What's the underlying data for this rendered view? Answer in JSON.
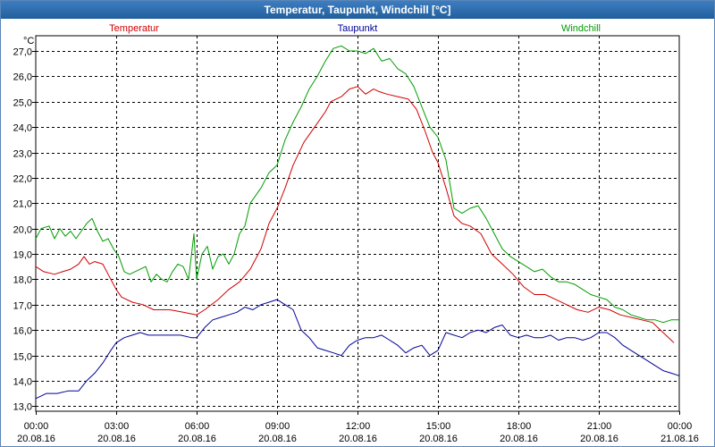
{
  "window": {
    "title": "Temperatur, Taupunkt, Windchill [°C]"
  },
  "chart_data": {
    "type": "line",
    "title": "Temperatur, Taupunkt, Windchill [°C]",
    "ylabel": "°C",
    "ylim": [
      12.8,
      27.6
    ],
    "yticks": [
      13.0,
      14.0,
      15.0,
      16.0,
      17.0,
      18.0,
      19.0,
      20.0,
      21.0,
      22.0,
      23.0,
      24.0,
      25.0,
      26.0,
      27.0
    ],
    "ytick_labels": [
      "13,0",
      "14,0",
      "15,0",
      "16,0",
      "17,0",
      "18,0",
      "19,0",
      "20,0",
      "21,0",
      "22,0",
      "23,0",
      "24,0",
      "25,0",
      "26,0",
      "27,0"
    ],
    "xlim": [
      0,
      24
    ],
    "xticks": [
      0,
      3,
      6,
      9,
      12,
      15,
      18,
      21,
      24
    ],
    "xtick_labels": [
      [
        "00:00",
        "20.08.16"
      ],
      [
        "03:00",
        "20.08.16"
      ],
      [
        "06:00",
        "20.08.16"
      ],
      [
        "09:00",
        "20.08.16"
      ],
      [
        "12:00",
        "20.08.16"
      ],
      [
        "15:00",
        "20.08.16"
      ],
      [
        "18:00",
        "20.08.16"
      ],
      [
        "21:00",
        "20.08.16"
      ],
      [
        "00:00",
        "21.08.16"
      ]
    ],
    "grid": true,
    "legend_position": "top",
    "series": [
      {
        "name": "Temperatur",
        "color": "#d00000",
        "x": [
          0,
          0.3,
          0.7,
          1.0,
          1.3,
          1.6,
          1.8,
          2.0,
          2.2,
          2.5,
          2.7,
          3.0,
          3.2,
          3.6,
          4.0,
          4.4,
          5.0,
          5.5,
          6.0,
          6.3,
          6.8,
          7.2,
          7.6,
          8.0,
          8.4,
          8.7,
          9.0,
          9.3,
          9.6,
          10.0,
          10.4,
          10.8,
          11.0,
          11.4,
          11.7,
          12.0,
          12.3,
          12.6,
          12.8,
          13.1,
          13.5,
          13.9,
          14.2,
          14.5,
          14.8,
          15.0,
          15.3,
          15.6,
          15.9,
          16.2,
          16.6,
          17.0,
          17.4,
          17.8,
          18.2,
          18.6,
          19.0,
          19.4,
          19.8,
          20.2,
          20.6,
          21.0,
          21.4,
          21.8,
          22.2,
          22.6,
          23.0,
          23.4,
          23.8
        ],
        "y": [
          18.5,
          18.3,
          18.2,
          18.3,
          18.4,
          18.6,
          18.9,
          18.6,
          18.7,
          18.6,
          18.2,
          17.6,
          17.3,
          17.1,
          17.0,
          16.8,
          16.8,
          16.7,
          16.6,
          16.8,
          17.2,
          17.6,
          17.9,
          18.4,
          19.2,
          20.2,
          20.8,
          21.6,
          22.5,
          23.4,
          24.0,
          24.6,
          25.0,
          25.2,
          25.5,
          25.6,
          25.3,
          25.5,
          25.4,
          25.3,
          25.2,
          25.1,
          24.7,
          23.9,
          23.0,
          22.6,
          21.6,
          20.5,
          20.2,
          20.1,
          19.8,
          19.0,
          18.6,
          18.2,
          17.7,
          17.4,
          17.4,
          17.2,
          17.0,
          16.8,
          16.7,
          16.9,
          16.8,
          16.6,
          16.5,
          16.4,
          16.3,
          15.9,
          15.5
        ]
      },
      {
        "name": "Taupunkt",
        "color": "#000098",
        "x": [
          0,
          0.4,
          0.8,
          1.2,
          1.6,
          1.9,
          2.2,
          2.5,
          2.8,
          3.0,
          3.3,
          3.6,
          3.9,
          4.2,
          4.6,
          5.0,
          5.4,
          5.8,
          6.0,
          6.3,
          6.6,
          6.9,
          7.2,
          7.5,
          7.8,
          8.1,
          8.4,
          8.7,
          9.0,
          9.3,
          9.6,
          9.9,
          10.2,
          10.5,
          10.8,
          11.1,
          11.4,
          11.7,
          12.0,
          12.3,
          12.6,
          12.9,
          13.2,
          13.5,
          13.8,
          14.1,
          14.4,
          14.7,
          15.0,
          15.3,
          15.6,
          15.9,
          16.2,
          16.5,
          16.8,
          17.1,
          17.4,
          17.7,
          18.0,
          18.3,
          18.6,
          18.9,
          19.2,
          19.5,
          19.8,
          20.1,
          20.4,
          20.7,
          21.0,
          21.3,
          21.6,
          21.9,
          22.2,
          22.5,
          22.8,
          23.1,
          23.4,
          23.7,
          24.0
        ],
        "y": [
          13.3,
          13.5,
          13.5,
          13.6,
          13.6,
          14.0,
          14.3,
          14.7,
          15.2,
          15.5,
          15.7,
          15.8,
          15.9,
          15.8,
          15.8,
          15.8,
          15.8,
          15.7,
          15.7,
          16.1,
          16.4,
          16.5,
          16.6,
          16.7,
          16.9,
          16.8,
          17.0,
          17.1,
          17.2,
          17.0,
          16.8,
          16.0,
          15.7,
          15.3,
          15.2,
          15.1,
          15.0,
          15.4,
          15.6,
          15.7,
          15.7,
          15.8,
          15.6,
          15.4,
          15.1,
          15.3,
          15.4,
          15.0,
          15.2,
          15.9,
          15.8,
          15.7,
          15.9,
          16.0,
          15.9,
          16.1,
          16.2,
          15.8,
          15.7,
          15.8,
          15.7,
          15.7,
          15.8,
          15.6,
          15.7,
          15.7,
          15.6,
          15.7,
          15.9,
          15.9,
          15.7,
          15.4,
          15.2,
          15.0,
          14.8,
          14.6,
          14.4,
          14.3,
          14.2
        ]
      },
      {
        "name": "Windchill",
        "color": "#009c00",
        "x": [
          0,
          0.2,
          0.5,
          0.7,
          0.9,
          1.1,
          1.3,
          1.5,
          1.7,
          1.9,
          2.1,
          2.3,
          2.5,
          2.7,
          2.9,
          3.1,
          3.3,
          3.5,
          3.7,
          3.9,
          4.1,
          4.3,
          4.5,
          4.7,
          4.9,
          5.1,
          5.3,
          5.5,
          5.7,
          5.9,
          6.0,
          6.2,
          6.4,
          6.6,
          6.8,
          7.0,
          7.2,
          7.4,
          7.6,
          7.8,
          8.0,
          8.2,
          8.4,
          8.7,
          9.0,
          9.3,
          9.6,
          9.9,
          10.2,
          10.5,
          10.8,
          11.1,
          11.4,
          11.7,
          12.0,
          12.3,
          12.6,
          12.9,
          13.2,
          13.5,
          13.8,
          14.1,
          14.4,
          14.7,
          15.0,
          15.3,
          15.6,
          15.9,
          16.2,
          16.5,
          16.8,
          17.1,
          17.4,
          17.7,
          18.0,
          18.3,
          18.6,
          18.9,
          19.2,
          19.5,
          19.8,
          20.1,
          20.4,
          20.7,
          21.0,
          21.3,
          21.6,
          21.9,
          22.2,
          22.5,
          22.8,
          23.1,
          23.4,
          23.7,
          24.0
        ],
        "y": [
          19.6,
          20.0,
          20.1,
          19.6,
          20.0,
          19.7,
          19.9,
          19.6,
          19.9,
          20.2,
          20.4,
          19.9,
          19.5,
          19.6,
          19.2,
          18.9,
          18.3,
          18.2,
          18.3,
          18.4,
          18.5,
          17.9,
          18.2,
          18.0,
          17.9,
          18.3,
          18.6,
          18.5,
          18.0,
          19.8,
          18.0,
          19.0,
          19.3,
          18.4,
          18.9,
          19.0,
          18.6,
          19.0,
          19.8,
          20.1,
          21.0,
          21.3,
          21.6,
          22.2,
          22.5,
          23.5,
          24.2,
          24.8,
          25.5,
          26.0,
          26.6,
          27.1,
          27.2,
          27.0,
          27.0,
          26.9,
          27.1,
          26.6,
          26.7,
          26.3,
          26.1,
          25.6,
          24.8,
          24.0,
          23.6,
          22.7,
          20.8,
          20.6,
          20.8,
          20.9,
          20.4,
          19.8,
          19.2,
          18.9,
          18.7,
          18.5,
          18.3,
          18.4,
          18.1,
          17.9,
          17.9,
          17.8,
          17.6,
          17.4,
          17.3,
          17.2,
          16.9,
          16.8,
          16.6,
          16.5,
          16.4,
          16.4,
          16.3,
          16.4,
          16.4
        ]
      }
    ]
  }
}
